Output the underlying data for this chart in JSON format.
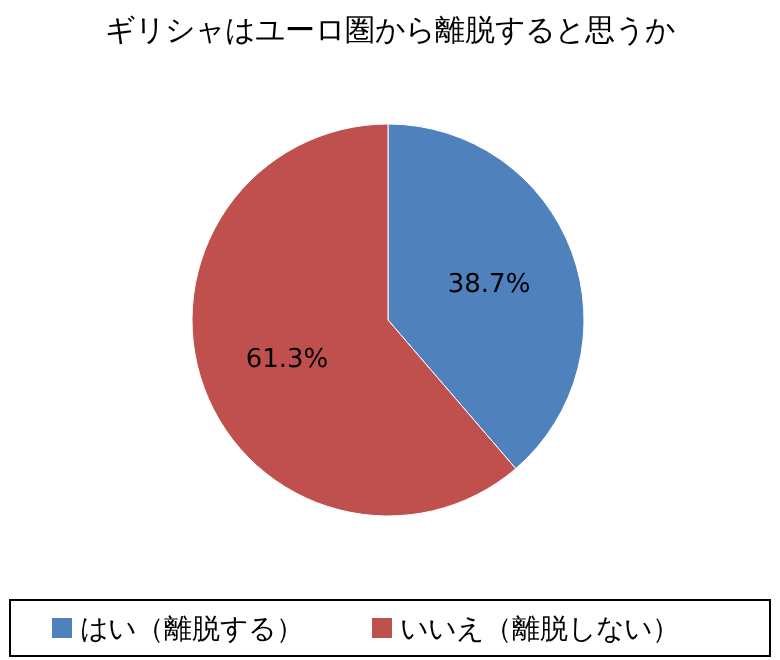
{
  "chart_data": {
    "type": "pie",
    "title": "ギリシャはユーロ圏から離脱すると思うか",
    "categories": [
      "はい（離脱する）",
      "いいえ（離脱しない）"
    ],
    "values": [
      38.7,
      61.3
    ],
    "colors": [
      "#4f81bd",
      "#c0504d"
    ],
    "value_labels": [
      "38.7%",
      "61.3%"
    ],
    "legend": "bottom"
  }
}
